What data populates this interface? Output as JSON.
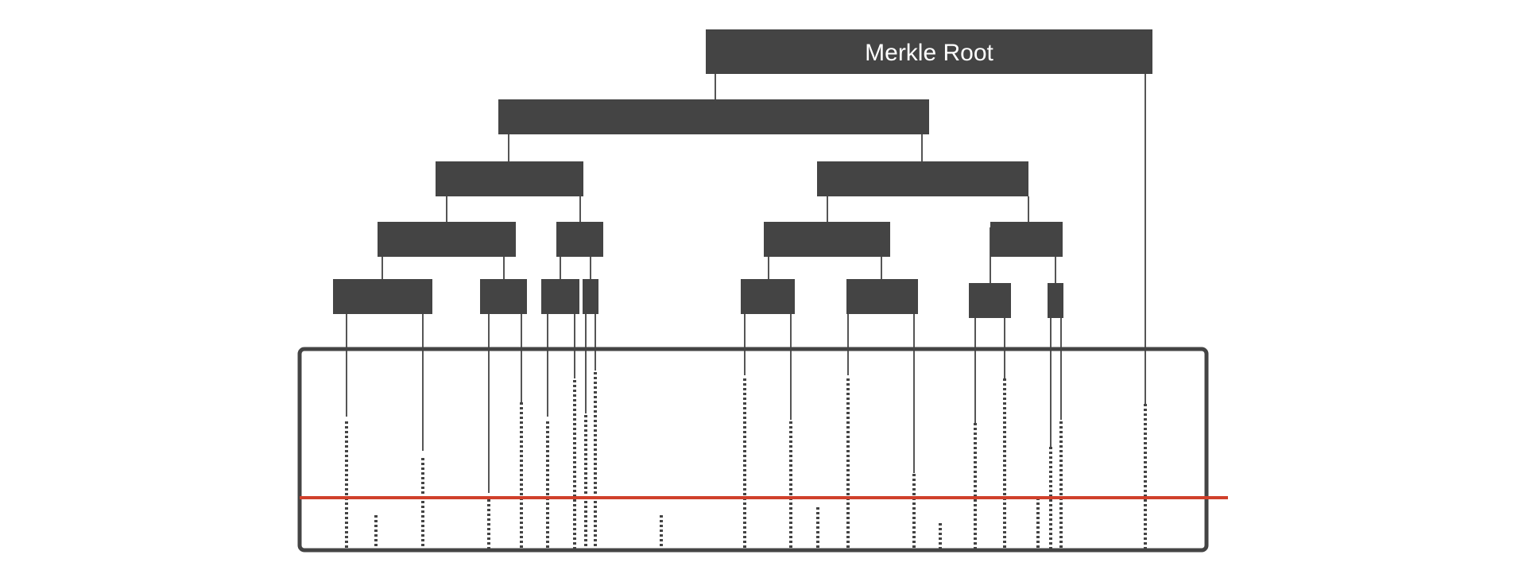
{
  "root": {
    "label": "Merkle Root"
  },
  "colors": {
    "node_fill": "#444444",
    "line": "#555555",
    "frame": "#444444",
    "highlight_line": "#d0402b",
    "root_text": "#ffffff"
  }
}
